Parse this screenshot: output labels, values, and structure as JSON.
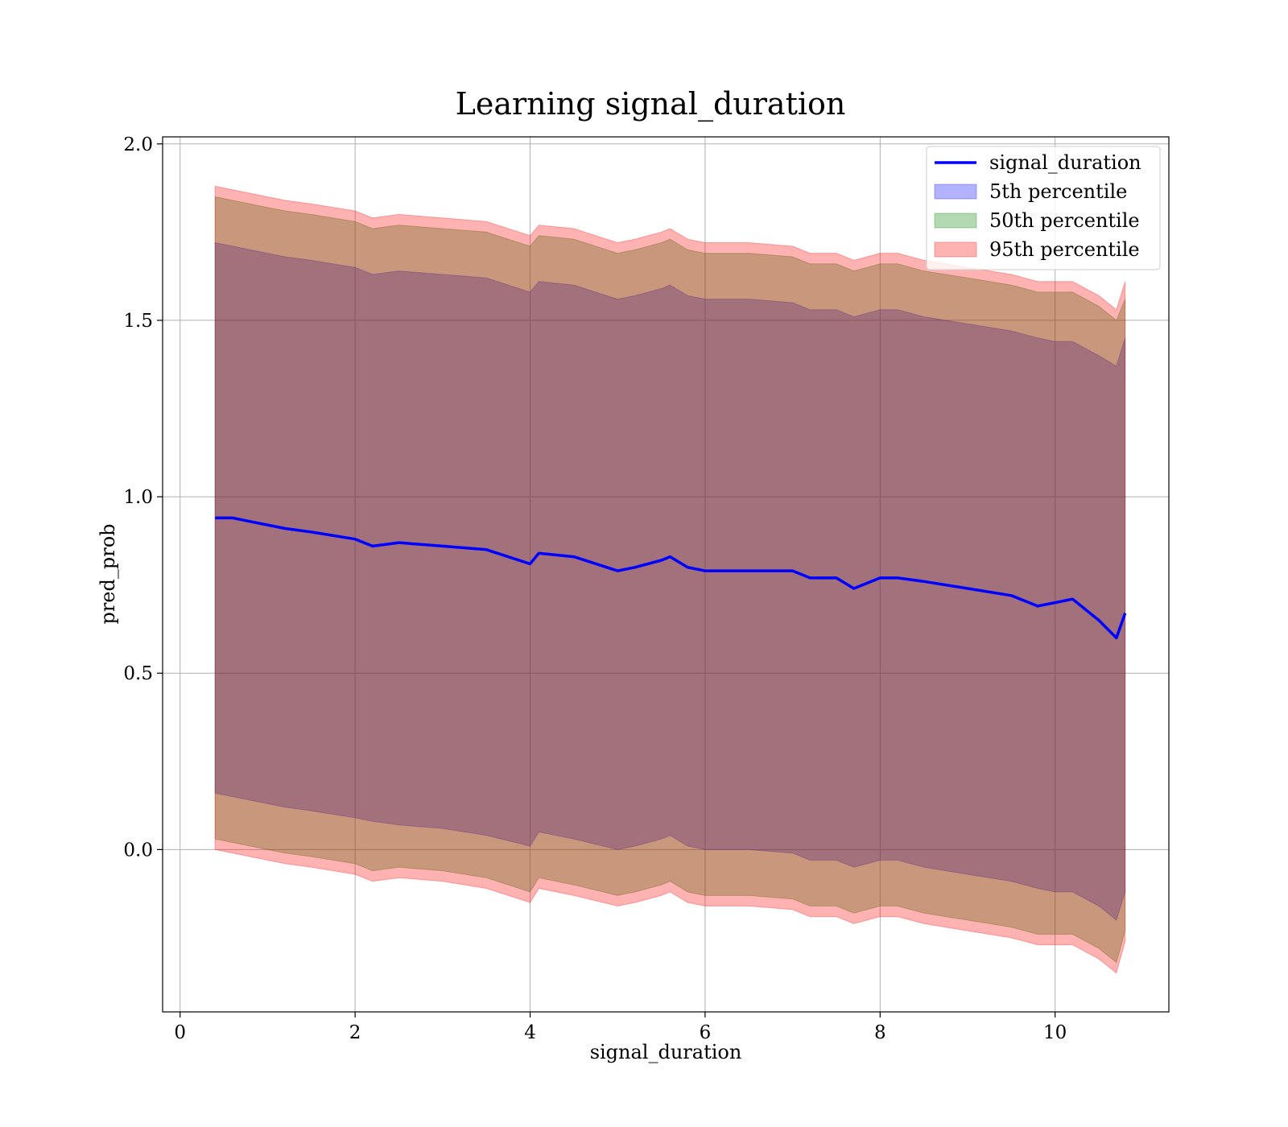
{
  "chart_data": {
    "type": "area",
    "title": "Learning signal_duration",
    "xlabel": "signal_duration",
    "ylabel": "pred_prob",
    "xlim": [
      -0.2,
      11.3
    ],
    "ylim": [
      -0.46,
      2.02
    ],
    "grid": true,
    "legend_position": "top-right",
    "x_ticks": [
      {
        "value": 0,
        "label": "0"
      },
      {
        "value": 2,
        "label": "2"
      },
      {
        "value": 4,
        "label": "4"
      },
      {
        "value": 6,
        "label": "6"
      },
      {
        "value": 8,
        "label": "8"
      },
      {
        "value": 10,
        "label": "10"
      }
    ],
    "y_ticks": [
      {
        "value": 0.0,
        "label": "0.0"
      },
      {
        "value": 0.5,
        "label": "0.5"
      },
      {
        "value": 1.0,
        "label": "1.0"
      },
      {
        "value": 1.5,
        "label": "1.5"
      },
      {
        "value": 2.0,
        "label": "2.0"
      }
    ],
    "x": [
      0.4,
      0.6,
      0.8,
      1.0,
      1.2,
      1.5,
      2.0,
      2.2,
      2.5,
      3.0,
      3.5,
      4.0,
      4.1,
      4.5,
      5.0,
      5.2,
      5.5,
      5.6,
      5.8,
      6.0,
      6.5,
      7.0,
      7.2,
      7.5,
      7.7,
      8.0,
      8.2,
      8.5,
      9.0,
      9.5,
      9.8,
      10.0,
      10.2,
      10.5,
      10.7,
      10.8
    ],
    "series": [
      {
        "name": "signal_duration",
        "role": "line",
        "color": "#0000ff",
        "values": [
          0.94,
          0.94,
          0.93,
          0.92,
          0.91,
          0.9,
          0.88,
          0.86,
          0.87,
          0.86,
          0.85,
          0.81,
          0.84,
          0.83,
          0.79,
          0.8,
          0.82,
          0.83,
          0.8,
          0.79,
          0.79,
          0.79,
          0.77,
          0.77,
          0.74,
          0.77,
          0.77,
          0.76,
          0.74,
          0.72,
          0.69,
          0.7,
          0.71,
          0.65,
          0.6,
          0.67
        ]
      },
      {
        "name": "5th percentile",
        "role": "band",
        "color": "#0000ff",
        "lower": [
          0.16,
          0.15,
          0.14,
          0.13,
          0.12,
          0.11,
          0.09,
          0.08,
          0.07,
          0.06,
          0.04,
          0.01,
          0.05,
          0.03,
          0.0,
          0.01,
          0.03,
          0.04,
          0.01,
          0.0,
          0.0,
          -0.01,
          -0.03,
          -0.03,
          -0.05,
          -0.03,
          -0.03,
          -0.05,
          -0.07,
          -0.09,
          -0.11,
          -0.12,
          -0.12,
          -0.16,
          -0.2,
          -0.12
        ],
        "upper": [
          1.72,
          1.71,
          1.7,
          1.69,
          1.68,
          1.67,
          1.65,
          1.63,
          1.64,
          1.63,
          1.62,
          1.58,
          1.61,
          1.6,
          1.56,
          1.57,
          1.59,
          1.6,
          1.57,
          1.56,
          1.56,
          1.55,
          1.53,
          1.53,
          1.51,
          1.53,
          1.53,
          1.51,
          1.49,
          1.47,
          1.45,
          1.44,
          1.44,
          1.4,
          1.37,
          1.45
        ]
      },
      {
        "name": "50th percentile",
        "role": "band",
        "color": "#008000",
        "lower": [
          0.03,
          0.02,
          0.01,
          0.0,
          -0.01,
          -0.02,
          -0.04,
          -0.06,
          -0.05,
          -0.06,
          -0.08,
          -0.12,
          -0.08,
          -0.1,
          -0.13,
          -0.12,
          -0.1,
          -0.09,
          -0.12,
          -0.13,
          -0.13,
          -0.14,
          -0.16,
          -0.16,
          -0.18,
          -0.16,
          -0.16,
          -0.18,
          -0.2,
          -0.22,
          -0.24,
          -0.24,
          -0.24,
          -0.28,
          -0.32,
          -0.23
        ],
        "upper": [
          1.85,
          1.84,
          1.83,
          1.82,
          1.81,
          1.8,
          1.78,
          1.76,
          1.77,
          1.76,
          1.75,
          1.71,
          1.74,
          1.73,
          1.69,
          1.7,
          1.72,
          1.73,
          1.7,
          1.69,
          1.69,
          1.68,
          1.66,
          1.66,
          1.64,
          1.66,
          1.66,
          1.64,
          1.62,
          1.6,
          1.58,
          1.58,
          1.58,
          1.54,
          1.5,
          1.56
        ]
      },
      {
        "name": "95th percentile",
        "role": "band",
        "color": "#ff0000",
        "lower": [
          0.0,
          -0.01,
          -0.02,
          -0.03,
          -0.04,
          -0.05,
          -0.07,
          -0.09,
          -0.08,
          -0.09,
          -0.11,
          -0.15,
          -0.11,
          -0.13,
          -0.16,
          -0.15,
          -0.13,
          -0.12,
          -0.15,
          -0.16,
          -0.16,
          -0.17,
          -0.19,
          -0.19,
          -0.21,
          -0.19,
          -0.19,
          -0.21,
          -0.23,
          -0.25,
          -0.27,
          -0.27,
          -0.27,
          -0.31,
          -0.35,
          -0.26
        ],
        "upper": [
          1.88,
          1.87,
          1.86,
          1.85,
          1.84,
          1.83,
          1.81,
          1.79,
          1.8,
          1.79,
          1.78,
          1.74,
          1.77,
          1.76,
          1.72,
          1.73,
          1.75,
          1.76,
          1.73,
          1.72,
          1.72,
          1.71,
          1.69,
          1.69,
          1.67,
          1.69,
          1.69,
          1.67,
          1.65,
          1.63,
          1.61,
          1.61,
          1.61,
          1.57,
          1.53,
          1.61
        ]
      }
    ],
    "legend": [
      {
        "label": "signal_duration",
        "kind": "line",
        "color": "#0000ff"
      },
      {
        "label": "5th percentile",
        "kind": "patch",
        "color": "#0000ff"
      },
      {
        "label": "50th percentile",
        "kind": "patch",
        "color": "#008000"
      },
      {
        "label": "95th percentile",
        "kind": "patch",
        "color": "#ff0000"
      }
    ]
  }
}
